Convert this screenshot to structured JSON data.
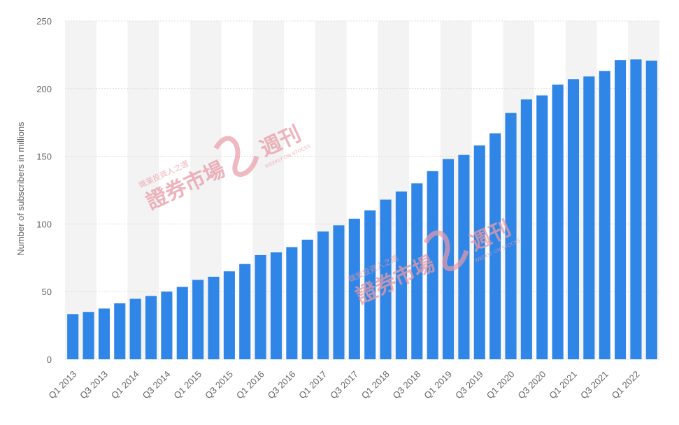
{
  "chart_data": {
    "type": "bar",
    "ylabel": "Number of subscribers in millions",
    "ylim": [
      0,
      250
    ],
    "yticks": [
      0,
      50,
      100,
      150,
      200,
      250
    ],
    "grid": true,
    "bar_color": "#2f86e6",
    "categories": [
      "Q1 2013",
      "Q2 2013",
      "Q3 2013",
      "Q4 2013",
      "Q1 2014",
      "Q2 2014",
      "Q3 2014",
      "Q4 2014",
      "Q1 2015",
      "Q2 2015",
      "Q3 2015",
      "Q4 2015",
      "Q1 2016",
      "Q2 2016",
      "Q3 2016",
      "Q4 2016",
      "Q1 2017",
      "Q2 2017",
      "Q3 2017",
      "Q4 2017",
      "Q1 2018",
      "Q2 2018",
      "Q3 2018",
      "Q4 2018",
      "Q1 2019",
      "Q2 2019",
      "Q3 2019",
      "Q4 2019",
      "Q1 2020",
      "Q2 2020",
      "Q3 2020",
      "Q4 2020",
      "Q1 2021",
      "Q2 2021",
      "Q3 2021",
      "Q4 2021",
      "Q1 2022",
      "Q2 2022"
    ],
    "tick_labels": [
      "Q1 2013",
      "Q3 2013",
      "Q1 2014",
      "Q3 2014",
      "Q1 2015",
      "Q3 2015",
      "Q1 2016",
      "Q3 2016",
      "Q1 2017",
      "Q3 2017",
      "Q1 2018",
      "Q3 2018",
      "Q1 2019",
      "Q3 2019",
      "Q1 2020",
      "Q3 2020",
      "Q1 2021",
      "Q3 2021",
      "Q1 2022"
    ],
    "values": [
      33.4,
      35.0,
      37.5,
      41.4,
      44.7,
      46.8,
      50.0,
      53.5,
      58.7,
      61.0,
      65.0,
      70.4,
      77.0,
      79.0,
      82.9,
      88.4,
      94.4,
      99.0,
      103.9,
      110.0,
      118.0,
      124.0,
      130.0,
      139.0,
      148.0,
      151.0,
      158.0,
      167.0,
      182.0,
      192.0,
      195.0,
      203.0,
      207.0,
      209.0,
      213.0,
      221.0,
      221.6,
      220.7
    ]
  },
  "watermark": {
    "brand": "證券市場",
    "mark": "週刊",
    "subtitle": "職業投資人之選",
    "english": "WEEKLY ON STOCKS"
  }
}
